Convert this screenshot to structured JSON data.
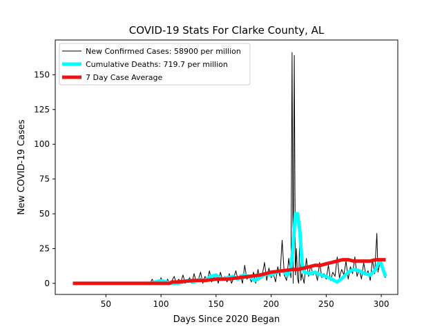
{
  "chart_data": {
    "type": "line",
    "title": "COVID-19 Stats For Clarke County, AL",
    "xlabel": "Days Since 2020 Began",
    "ylabel": "New COVID-19 Cases",
    "xlim": [
      4,
      315
    ],
    "ylim": [
      -8,
      175
    ],
    "xticks": [
      50,
      100,
      150,
      200,
      250,
      300
    ],
    "yticks": [
      0,
      25,
      50,
      75,
      100,
      125,
      150
    ],
    "grid": false,
    "legend_position": "top-left",
    "series": [
      {
        "name": "New Confirmed Cases: 58900 per million",
        "color": "#000000",
        "linewidth": 1,
        "x": [
          20,
          90,
          92,
          94,
          96,
          98,
          100,
          102,
          104,
          106,
          108,
          110,
          112,
          114,
          116,
          118,
          120,
          122,
          124,
          126,
          128,
          130,
          132,
          134,
          136,
          138,
          140,
          142,
          144,
          146,
          148,
          150,
          152,
          154,
          156,
          158,
          160,
          162,
          164,
          166,
          168,
          170,
          172,
          174,
          176,
          178,
          180,
          182,
          184,
          186,
          188,
          190,
          192,
          194,
          196,
          198,
          200,
          202,
          204,
          206,
          208,
          210,
          212,
          214,
          216,
          218,
          219,
          220,
          221,
          222,
          223,
          224,
          225,
          226,
          227,
          228,
          230,
          232,
          234,
          236,
          238,
          240,
          242,
          244,
          246,
          248,
          250,
          252,
          254,
          256,
          258,
          260,
          262,
          264,
          266,
          268,
          270,
          272,
          274,
          276,
          278,
          280,
          282,
          284,
          286,
          288,
          290,
          292,
          294,
          295,
          296,
          297,
          298,
          300,
          302,
          304
        ],
        "y": [
          0,
          0,
          3,
          0,
          2,
          0,
          4,
          1,
          0,
          3,
          0,
          2,
          5,
          0,
          3,
          1,
          6,
          0,
          2,
          4,
          0,
          7,
          1,
          3,
          8,
          0,
          5,
          2,
          9,
          1,
          4,
          6,
          0,
          8,
          2,
          5,
          1,
          7,
          0,
          4,
          9,
          2,
          6,
          0,
          13,
          3,
          5,
          1,
          8,
          0,
          10,
          3,
          6,
          15,
          2,
          11,
          4,
          7,
          1,
          12,
          5,
          31,
          6,
          2,
          18,
          4,
          166,
          0,
          164,
          6,
          25,
          3,
          0,
          40,
          2,
          7,
          0,
          18,
          5,
          13,
          6,
          9,
          2,
          15,
          4,
          7,
          3,
          13,
          2,
          8,
          5,
          19,
          4,
          10,
          6,
          16,
          3,
          12,
          7,
          19,
          5,
          10,
          3,
          15,
          6,
          9,
          2,
          17,
          7,
          22,
          36,
          8,
          12,
          17,
          6,
          4
        ]
      },
      {
        "name": "Cumulative Deaths: 719.7 per million",
        "color": "#00ffff",
        "linewidth": 5,
        "x": [
          20,
          90,
          95,
          100,
          105,
          110,
          115,
          120,
          125,
          130,
          135,
          140,
          145,
          150,
          155,
          160,
          165,
          170,
          175,
          180,
          185,
          190,
          195,
          200,
          205,
          210,
          215,
          218,
          220,
          222,
          224,
          226,
          228,
          230,
          235,
          240,
          245,
          250,
          255,
          260,
          265,
          270,
          275,
          280,
          285,
          290,
          295,
          298,
          300,
          302,
          304
        ],
        "y": [
          0,
          0,
          1,
          2,
          1,
          0,
          0,
          1,
          2,
          1,
          3,
          2,
          5,
          6,
          3,
          4,
          5,
          3,
          6,
          5,
          2,
          4,
          7,
          6,
          8,
          9,
          6,
          10,
          28,
          50,
          50,
          38,
          15,
          8,
          7,
          8,
          6,
          5,
          3,
          1,
          4,
          8,
          10,
          9,
          7,
          6,
          10,
          16,
          14,
          9,
          5
        ]
      },
      {
        "name": "7 Day Case Average",
        "color": "#ee1111",
        "linewidth": 5,
        "x": [
          20,
          108,
          110,
          115,
          130,
          140,
          150,
          160,
          170,
          180,
          190,
          200,
          210,
          220,
          225,
          230,
          235,
          240,
          245,
          250,
          255,
          260,
          265,
          270,
          275,
          280,
          285,
          290,
          295,
          300,
          304
        ],
        "y": [
          0,
          0,
          1,
          1,
          2,
          2,
          3,
          3,
          4,
          5,
          6,
          8,
          9,
          10,
          10,
          11,
          12,
          13,
          13,
          14,
          15,
          16,
          17,
          17,
          16,
          16,
          16,
          16,
          17,
          17,
          17
        ]
      }
    ]
  }
}
